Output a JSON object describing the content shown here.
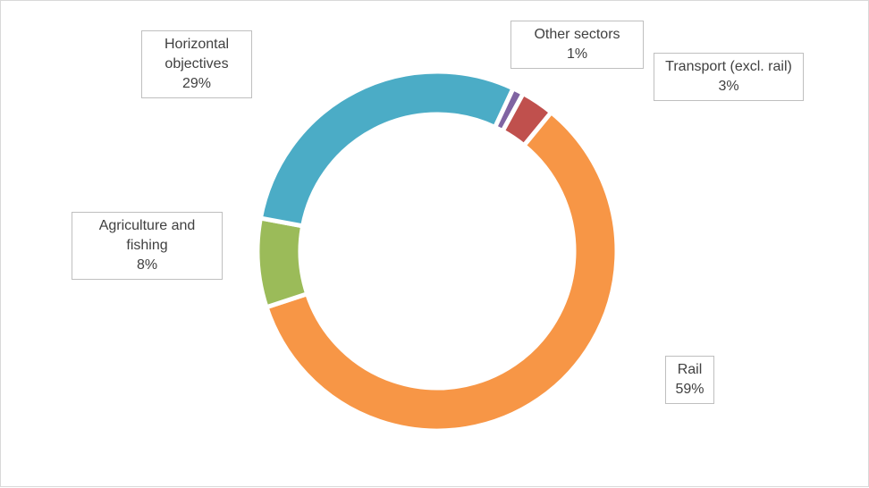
{
  "chart_data": {
    "type": "donut",
    "categories": [
      "Other sectors",
      "Transport (excl. rail)",
      "Rail",
      "Agriculture and fishing",
      "Horizontal objectives"
    ],
    "values": [
      1,
      3,
      59,
      8,
      29
    ],
    "value_labels": [
      "1%",
      "3%",
      "59%",
      "8%",
      "29%"
    ],
    "colors": [
      "#8064a2",
      "#c0504d",
      "#f79646",
      "#9bbb59",
      "#4bacc6"
    ]
  }
}
